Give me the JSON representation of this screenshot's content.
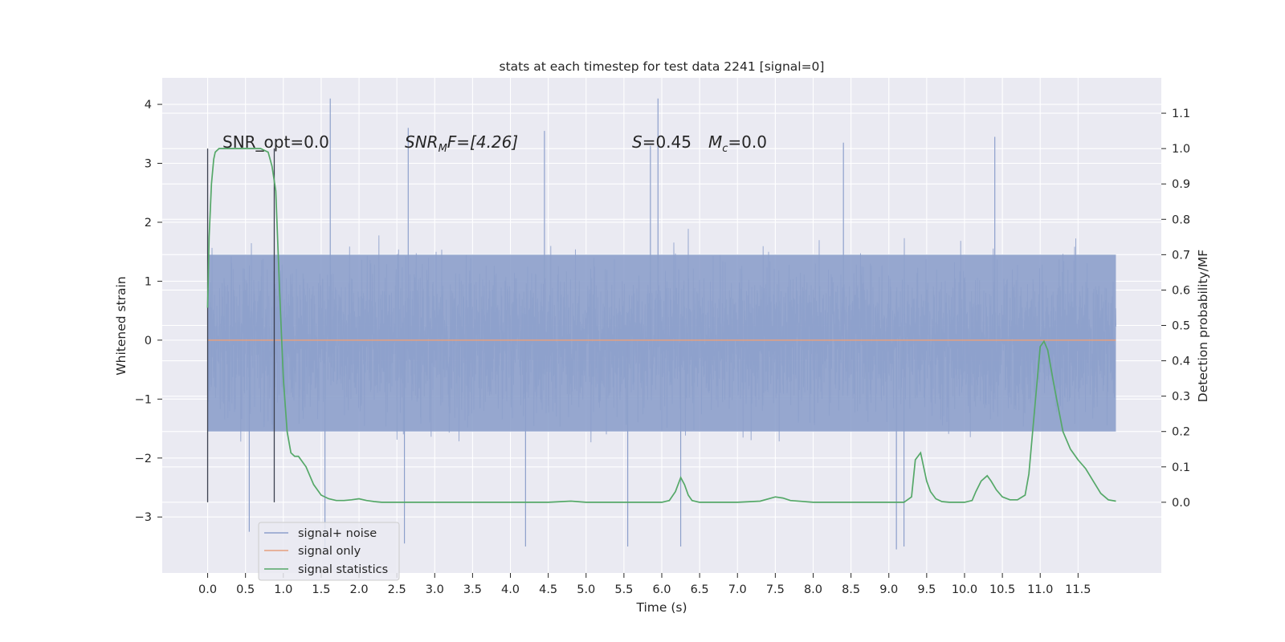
{
  "chart_data": {
    "type": "line",
    "title": "stats at each timestep for test data 2241 [signal=0]",
    "xlabel": "Time (s)",
    "ylabel": "Whitened strain",
    "ylabel_right": "Detection probability/MF",
    "xlim": [
      -0.6,
      12.6
    ],
    "ylim": [
      -3.95,
      4.45
    ],
    "ylim_right": [
      -0.2,
      1.2
    ],
    "x_ticks": [
      "0.0",
      "0.5",
      "1.0",
      "1.5",
      "2.0",
      "2.5",
      "3.0",
      "3.5",
      "4.0",
      "4.5",
      "5.0",
      "5.5",
      "6.0",
      "6.5",
      "7.0",
      "7.5",
      "8.0",
      "8.5",
      "9.0",
      "9.5",
      "10.0",
      "10.5",
      "11.0",
      "11.5"
    ],
    "y_ticks": [
      "4",
      "3",
      "2",
      "1",
      "0",
      "−1",
      "−2",
      "−3"
    ],
    "y_ticks_right": [
      "1.1",
      "1.0",
      "0.9",
      "0.8",
      "0.7",
      "0.6",
      "0.5",
      "0.4",
      "0.3",
      "0.2",
      "0.1",
      "0.0"
    ],
    "grid": true,
    "legend_position": "lower-left",
    "annotations": {
      "snr_opt": "SNR_opt=0.0",
      "snr_mf_main": "SNR",
      "snr_mf_sub": "M",
      "snr_mf_rest": "F=[4.26]",
      "s_main": "S",
      "s_rest": "=0.45",
      "mc_main": "M",
      "mc_sub": "c",
      "mc_rest": "=0.0"
    },
    "markers": [
      {
        "x": 0.0,
        "y_range": [
          -2.75,
          3.25
        ]
      },
      {
        "x": 0.88,
        "y_range": [
          -2.75,
          3.25
        ]
      }
    ],
    "series": [
      {
        "name": "signal+ noise",
        "color": "#8da0cb",
        "x_range": [
          0.0,
          12.0
        ],
        "typical_band": [
          -1.55,
          1.45
        ],
        "min": -3.5,
        "max": 4.1,
        "spikes": [
          [
            1.62,
            4.1
          ],
          [
            5.95,
            4.1
          ],
          [
            2.65,
            3.6
          ],
          [
            4.45,
            3.55
          ],
          [
            8.4,
            3.35
          ],
          [
            10.4,
            3.45
          ],
          [
            5.85,
            3.3
          ],
          [
            1.55,
            -3.55
          ],
          [
            2.6,
            -3.45
          ],
          [
            4.2,
            -3.5
          ],
          [
            6.25,
            -3.5
          ],
          [
            5.55,
            -3.5
          ],
          [
            9.1,
            -3.55
          ],
          [
            0.55,
            -3.25
          ],
          [
            9.2,
            -3.5
          ]
        ]
      },
      {
        "name": "signal only",
        "color": "#e5a07e",
        "x": [
          0.0,
          12.0
        ],
        "y": [
          0.0,
          0.0
        ]
      },
      {
        "name": "signal statistics",
        "color": "#55a868",
        "axis": "right",
        "x": [
          0.0,
          0.02,
          0.05,
          0.08,
          0.1,
          0.15,
          0.25,
          0.4,
          0.6,
          0.7,
          0.8,
          0.85,
          0.9,
          0.95,
          1.0,
          1.05,
          1.1,
          1.15,
          1.2,
          1.3,
          1.4,
          1.5,
          1.6,
          1.7,
          1.8,
          1.9,
          2.0,
          2.1,
          2.2,
          2.3,
          3.0,
          4.0,
          4.5,
          4.8,
          5.0,
          5.5,
          6.0,
          6.1,
          6.18,
          6.25,
          6.3,
          6.35,
          6.4,
          6.5,
          7.0,
          7.3,
          7.5,
          7.6,
          7.7,
          8.0,
          8.5,
          9.0,
          9.2,
          9.3,
          9.35,
          9.42,
          9.5,
          9.55,
          9.62,
          9.7,
          9.8,
          10.0,
          10.1,
          10.15,
          10.22,
          10.3,
          10.35,
          10.42,
          10.5,
          10.6,
          10.7,
          10.8,
          10.85,
          10.9,
          10.95,
          11.0,
          11.05,
          11.1,
          11.15,
          11.2,
          11.3,
          11.4,
          11.5,
          11.6,
          11.7,
          11.8,
          11.9,
          12.0
        ],
        "y": [
          0.55,
          0.75,
          0.9,
          0.97,
          0.99,
          1.0,
          1.0,
          1.0,
          1.0,
          1.0,
          0.99,
          0.95,
          0.88,
          0.6,
          0.35,
          0.2,
          0.14,
          0.13,
          0.13,
          0.1,
          0.05,
          0.02,
          0.01,
          0.005,
          0.005,
          0.007,
          0.01,
          0.005,
          0.002,
          0.0,
          0.0,
          0.0,
          0.0,
          0.003,
          0.0,
          0.0,
          0.0,
          0.005,
          0.03,
          0.07,
          0.05,
          0.02,
          0.005,
          0.0,
          0.0,
          0.003,
          0.015,
          0.012,
          0.005,
          0.0,
          0.0,
          0.0,
          0.0,
          0.015,
          0.12,
          0.14,
          0.06,
          0.03,
          0.01,
          0.002,
          0.0,
          0.0,
          0.005,
          0.03,
          0.06,
          0.075,
          0.06,
          0.035,
          0.015,
          0.007,
          0.007,
          0.02,
          0.08,
          0.2,
          0.32,
          0.44,
          0.455,
          0.43,
          0.37,
          0.31,
          0.2,
          0.15,
          0.12,
          0.095,
          0.06,
          0.025,
          0.007,
          0.003
        ]
      }
    ]
  }
}
